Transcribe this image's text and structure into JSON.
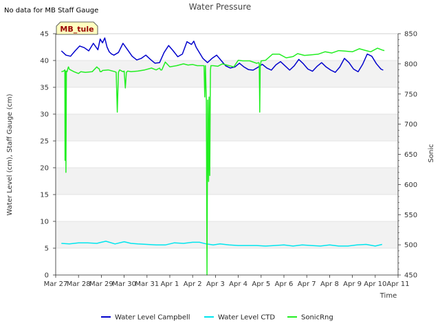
{
  "chart_data": {
    "type": "line",
    "title": "Water Pressure",
    "note": "No data for MB Staff Gauge",
    "station_label": "MB_tule",
    "xlabel": "Time",
    "ylabel": "Water Level (cm), Staff Gauge (cm)",
    "y2label": "Sonic",
    "xlim": [
      0,
      15
    ],
    "ylim": [
      0,
      45
    ],
    "y2lim": [
      450,
      850
    ],
    "x_ticks": [
      0,
      1,
      2,
      3,
      4,
      5,
      6,
      7,
      8,
      9,
      10,
      11,
      12,
      13,
      14,
      15
    ],
    "x_tick_labels": [
      "Mar 27",
      "Mar 28",
      "Mar 29",
      "Mar 30",
      "Mar 31",
      "Apr 1",
      "Apr 2",
      "Apr 3",
      "Apr 4",
      "Apr 5",
      "Apr 6",
      "Apr 7",
      "Apr 8",
      "Apr 9",
      "Apr 10",
      "Apr 11"
    ],
    "y_ticks": [
      0,
      5,
      10,
      15,
      20,
      25,
      30,
      35,
      40,
      45
    ],
    "y2_ticks": [
      450,
      500,
      550,
      600,
      650,
      700,
      750,
      800,
      850
    ],
    "series": [
      {
        "name": "Water Level Campbell",
        "axis": "left",
        "color": "#0000cc",
        "x": [
          0.25,
          0.45,
          0.65,
          0.85,
          1.05,
          1.25,
          1.45,
          1.65,
          1.85,
          1.95,
          2.05,
          2.15,
          2.25,
          2.35,
          2.45,
          2.55,
          2.75,
          2.95,
          3.15,
          3.35,
          3.55,
          3.75,
          3.95,
          4.15,
          4.35,
          4.55,
          4.75,
          4.95,
          5.15,
          5.35,
          5.55,
          5.75,
          5.95,
          6.05,
          6.15,
          6.25,
          6.45,
          6.65,
          6.85,
          7.05,
          7.25,
          7.45,
          7.65,
          7.85,
          8.05,
          8.25,
          8.45,
          8.65,
          8.85,
          9.05,
          9.25,
          9.45,
          9.65,
          9.85,
          10.05,
          10.25,
          10.45,
          10.65,
          10.85,
          11.05,
          11.25,
          11.45,
          11.65,
          11.85,
          12.05,
          12.25,
          12.45,
          12.65,
          12.85,
          13.05,
          13.25,
          13.45,
          13.65,
          13.85,
          14.05,
          14.25,
          14.35
        ],
        "values": [
          41.8,
          41.0,
          40.8,
          41.8,
          42.7,
          42.4,
          41.8,
          43.2,
          42.0,
          44.0,
          43.3,
          44.2,
          42.5,
          41.6,
          41.2,
          41.0,
          41.5,
          43.2,
          42.0,
          40.8,
          40.1,
          40.4,
          41.0,
          40.2,
          39.5,
          39.6,
          41.5,
          42.8,
          41.8,
          40.7,
          41.2,
          43.5,
          43.0,
          43.6,
          42.5,
          41.8,
          40.4,
          39.6,
          40.4,
          41.0,
          40.0,
          39.0,
          38.6,
          38.8,
          39.5,
          38.8,
          38.3,
          38.2,
          38.7,
          39.3,
          38.6,
          38.2,
          39.2,
          39.8,
          39.0,
          38.2,
          39.0,
          40.2,
          39.4,
          38.4,
          38.0,
          38.9,
          39.6,
          38.8,
          38.2,
          37.8,
          38.8,
          40.4,
          39.6,
          38.4,
          37.9,
          39.3,
          41.2,
          40.8,
          39.4,
          38.4,
          38.2
        ]
      },
      {
        "name": "Water Level CTD",
        "axis": "left",
        "color": "#00e5ee",
        "x": [
          0.25,
          0.6,
          1.0,
          1.4,
          1.8,
          2.0,
          2.2,
          2.6,
          3.0,
          3.3,
          3.6,
          4.0,
          4.4,
          4.8,
          5.2,
          5.6,
          6.0,
          6.3,
          6.6,
          6.9,
          7.2,
          7.6,
          8.0,
          8.4,
          8.8,
          9.2,
          9.6,
          10.0,
          10.4,
          10.8,
          11.2,
          11.6,
          12.0,
          12.4,
          12.8,
          13.2,
          13.6,
          14.0,
          14.3
        ],
        "values": [
          5.9,
          5.8,
          6.0,
          6.0,
          5.9,
          6.1,
          6.3,
          5.8,
          6.2,
          5.9,
          5.8,
          5.7,
          5.6,
          5.6,
          6.0,
          5.9,
          6.1,
          6.1,
          5.8,
          5.6,
          5.8,
          5.6,
          5.5,
          5.5,
          5.5,
          5.4,
          5.5,
          5.6,
          5.4,
          5.6,
          5.5,
          5.4,
          5.6,
          5.4,
          5.4,
          5.6,
          5.7,
          5.4,
          5.7
        ]
      },
      {
        "name": "SonicRng",
        "axis": "right",
        "color": "#22ee22",
        "x": [
          0.25,
          0.35,
          0.4,
          0.41,
          0.43,
          0.45,
          0.47,
          0.5,
          0.53,
          0.56,
          0.6,
          0.8,
          1.0,
          1.1,
          1.3,
          1.6,
          1.8,
          1.85,
          1.9,
          1.95,
          2.0,
          2.05,
          2.3,
          2.6,
          2.65,
          2.7,
          2.75,
          2.8,
          2.95,
          3.0,
          3.05,
          3.1,
          3.15,
          3.3,
          3.6,
          3.9,
          4.2,
          4.4,
          4.55,
          4.6,
          4.65,
          4.8,
          5.0,
          5.3,
          5.6,
          5.8,
          6.0,
          6.2,
          6.4,
          6.5,
          6.53,
          6.56,
          6.6,
          6.63,
          6.66,
          6.7,
          6.72,
          6.75,
          6.78,
          6.8,
          6.9,
          7.1,
          7.3,
          7.5,
          7.8,
          8.0,
          8.2,
          8.5,
          8.8,
          8.9,
          8.92,
          8.94,
          8.96,
          9.0,
          9.2,
          9.5,
          9.8,
          10.1,
          10.4,
          10.6,
          10.9,
          11.2,
          11.5,
          11.8,
          12.1,
          12.4,
          12.7,
          13.0,
          13.3,
          13.6,
          13.8,
          14.1,
          14.3,
          14.4
        ],
        "values": [
          787,
          788,
          790,
          640,
          788,
          620,
          788,
          787,
          792,
          795,
          791,
          787,
          784,
          787,
          786,
          787,
          795,
          793,
          792,
          787,
          787,
          789,
          790,
          787,
          786,
          720,
          786,
          790,
          787,
          788,
          760,
          786,
          788,
          787,
          788,
          790,
          793,
          790,
          793,
          790,
          790,
          803,
          795,
          797,
          800,
          798,
          799,
          797,
          797,
          797,
          745,
          797,
          740,
          450,
          740,
          605,
          745,
          615,
          790,
          797,
          797,
          796,
          800,
          798,
          795,
          806,
          805,
          805,
          801,
          802,
          800,
          720,
          795,
          805,
          806,
          816,
          816,
          810,
          812,
          817,
          814,
          815,
          816,
          820,
          818,
          822,
          821,
          820,
          825,
          822,
          820,
          826,
          823,
          822
        ]
      }
    ],
    "legend": [
      "Water Level Campbell",
      "Water Level CTD",
      "SonicRng"
    ],
    "legend_position": "bottom-center",
    "grid": true
  }
}
